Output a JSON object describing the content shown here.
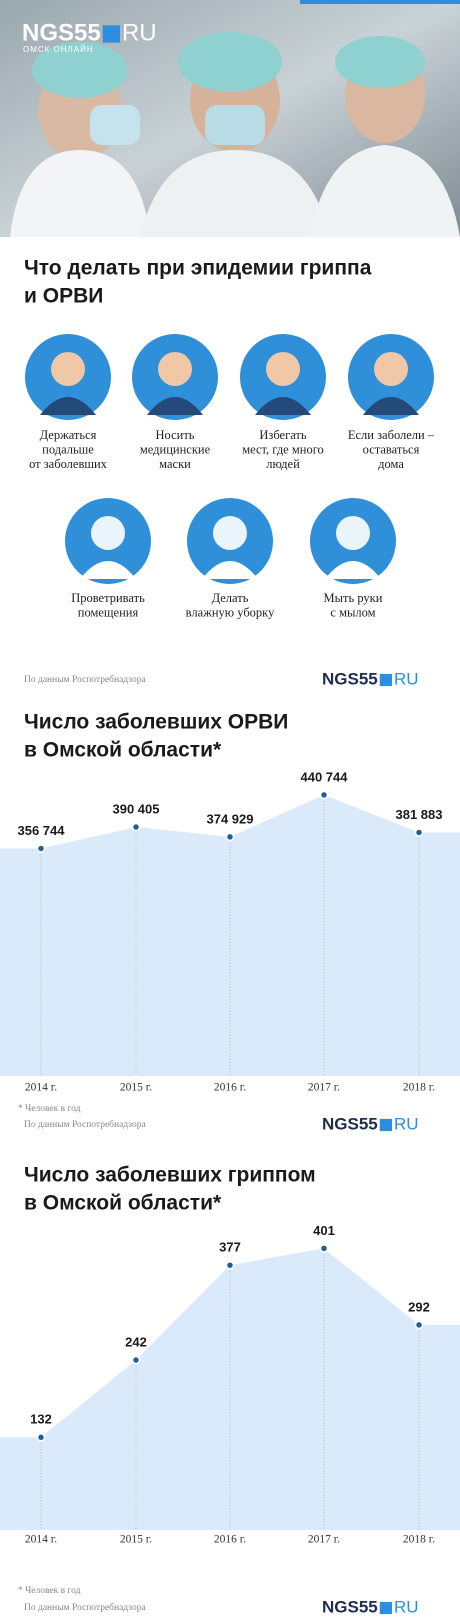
{
  "header": {
    "logo_main": "NGS55",
    "logo_domain": "RU",
    "logo_tagline": "ОМСК ОНЛАЙН"
  },
  "tips": {
    "title": [
      "Что делать при эпидемии гриппа",
      "и ОРВИ"
    ],
    "items": [
      {
        "lines": [
          "Держаться",
          "подальше",
          "от заболевших"
        ]
      },
      {
        "lines": [
          "Носить",
          "медицинские",
          "маски"
        ]
      },
      {
        "lines": [
          "Избегать",
          "мест, где много",
          "людей"
        ]
      },
      {
        "lines": [
          "Если заболели –",
          "оставаться",
          "дома"
        ]
      },
      {
        "lines": [
          "Проветривать",
          "помещения"
        ]
      },
      {
        "lines": [
          "Делать",
          "влажную уборку"
        ]
      },
      {
        "lines": [
          "Мыть руки",
          "с мылом"
        ]
      }
    ],
    "source": "По данным Роспотребнадзора"
  },
  "chart_data": [
    {
      "type": "area",
      "title": [
        "Число заболевших ОРВИ",
        "в Омской области*"
      ],
      "categories": [
        "2014 г.",
        "2015 г.",
        "2016 г.",
        "2017 г.",
        "2018 г."
      ],
      "values": [
        356744,
        390405,
        374929,
        440744,
        381883
      ],
      "value_labels": [
        "356 744",
        "390 405",
        "374 929",
        "440 744",
        "381 883"
      ],
      "ylim": [
        0,
        450000
      ],
      "color": "#dbeafa",
      "point_color": "#1f5f9e",
      "footnote": "* Человек в год",
      "source": "По данным Роспотребнадзора"
    },
    {
      "type": "area",
      "title": [
        "Число заболевших гриппом",
        "в Омской области*"
      ],
      "categories": [
        "2014 г.",
        "2015 г.",
        "2016 г.",
        "2017 г.",
        "2018 г."
      ],
      "values": [
        132,
        242,
        377,
        401,
        292
      ],
      "ylim": [
        0,
        420
      ],
      "color": "#dbeafa",
      "point_color": "#1f5f9e",
      "footnote": "* Человек в год",
      "source": "По данным Роспотребнадзора"
    }
  ]
}
